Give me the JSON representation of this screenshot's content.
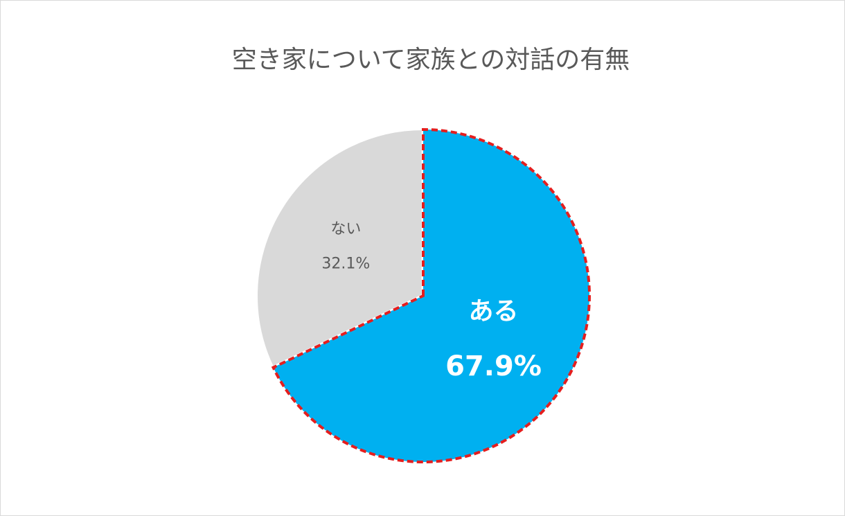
{
  "chart_data": {
    "type": "pie",
    "title": "空き家について家族との対話の有無",
    "categories": [
      "ある",
      "ない"
    ],
    "values": [
      67.9,
      32.1
    ],
    "value_labels": [
      "67.9%",
      "32.1%"
    ],
    "colors": [
      "#00b0f0",
      "#d9d9d9"
    ]
  }
}
